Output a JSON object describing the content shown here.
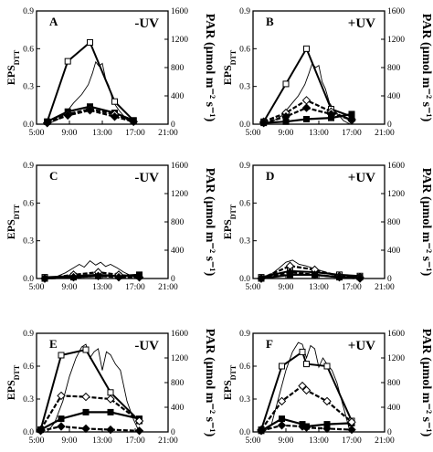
{
  "chart_data": [
    {
      "type": "line",
      "panel_label": "A",
      "treatment": "-UV",
      "ylabel": "EPS",
      "ylabel_subscript": "DTT",
      "y2label": "PAR (µmol m⁻² s⁻¹)",
      "xlim": [
        5,
        21
      ],
      "x_ticks": [
        "5:00",
        "9:00",
        "13:00",
        "17:00",
        "21:00"
      ],
      "ylim": [
        0,
        0.9
      ],
      "y_ticks": [
        "0.0",
        "0.3",
        "0.6",
        "0.9"
      ],
      "y2lim": [
        0,
        1600
      ],
      "y2_ticks": [
        "0",
        "400",
        "800",
        "1200",
        "1600"
      ],
      "series": [
        {
          "style": "open-square",
          "x": [
            6.3,
            8.8,
            11.5,
            14.5,
            16.8
          ],
          "y": [
            0.02,
            0.5,
            0.65,
            0.18,
            0.03
          ]
        },
        {
          "style": "filled-square",
          "x": [
            6.3,
            8.8,
            11.5,
            14.5,
            16.8
          ],
          "y": [
            0.02,
            0.1,
            0.14,
            0.09,
            0.03
          ]
        },
        {
          "style": "open-diamond",
          "x": [
            6.3,
            8.8,
            11.5,
            14.5,
            16.8
          ],
          "y": [
            0.01,
            0.08,
            0.12,
            0.08,
            0.02
          ]
        },
        {
          "style": "filled-diamond",
          "x": [
            6.3,
            8.8,
            11.5,
            14.5,
            16.8
          ],
          "y": [
            0.01,
            0.07,
            0.11,
            0.06,
            0.02
          ]
        }
      ],
      "par": {
        "x": [
          6.3,
          7.5,
          8.5,
          9.5,
          10.5,
          11.3,
          11.8,
          12.2,
          12.6,
          13.0,
          13.4,
          13.8,
          14.3,
          15.0,
          16.0,
          16.8
        ],
        "y": [
          0,
          60,
          150,
          300,
          420,
          560,
          720,
          880,
          820,
          860,
          640,
          540,
          320,
          200,
          60,
          0
        ]
      }
    },
    {
      "type": "line",
      "panel_label": "B",
      "treatment": "+UV",
      "ylabel": "EPS",
      "ylabel_subscript": "DTT",
      "y2label": "PAR (µmol m⁻² s⁻¹)",
      "xlim": [
        5,
        21
      ],
      "x_ticks": [
        "5:00",
        "9:00",
        "13:00",
        "17:00",
        "21:00"
      ],
      "ylim": [
        0,
        0.9
      ],
      "y_ticks": [
        "0.0",
        "0.3",
        "0.6",
        "0.9"
      ],
      "y2lim": [
        0,
        1600
      ],
      "y2_ticks": [
        "0",
        "400",
        "800",
        "1200",
        "1600"
      ],
      "series": [
        {
          "style": "open-square",
          "x": [
            6.3,
            9.0,
            11.5,
            14.5,
            17.0
          ],
          "y": [
            0.02,
            0.32,
            0.6,
            0.12,
            0.06
          ]
        },
        {
          "style": "filled-square",
          "x": [
            6.3,
            9.0,
            11.5,
            14.5,
            17.0
          ],
          "y": [
            0.01,
            0.02,
            0.04,
            0.05,
            0.08
          ]
        },
        {
          "style": "open-diamond",
          "x": [
            6.3,
            9.0,
            11.5,
            14.5,
            17.0
          ],
          "y": [
            0.02,
            0.09,
            0.19,
            0.1,
            0.03
          ]
        },
        {
          "style": "filled-diamond",
          "x": [
            6.3,
            9.0,
            11.5,
            14.5,
            17.0
          ],
          "y": [
            0.01,
            0.06,
            0.13,
            0.08,
            0.04
          ]
        }
      ],
      "par": {
        "x": [
          6.3,
          7.5,
          8.5,
          9.5,
          10.5,
          11.3,
          11.8,
          12.2,
          12.6,
          13.0,
          13.4,
          13.8,
          14.3,
          15.0,
          16.0,
          16.8
        ],
        "y": [
          0,
          50,
          120,
          260,
          400,
          560,
          720,
          860,
          800,
          830,
          600,
          500,
          300,
          180,
          50,
          0
        ]
      }
    },
    {
      "type": "line",
      "panel_label": "C",
      "treatment": "-UV",
      "ylabel": "EPS",
      "ylabel_subscript": "DTT",
      "y2label": "PAR (µmol m⁻² s⁻¹)",
      "xlim": [
        5,
        21
      ],
      "x_ticks": [
        "5:00",
        "9:00",
        "13:00",
        "17:00",
        "21:00"
      ],
      "ylim": [
        0,
        0.9
      ],
      "y_ticks": [
        "0.0",
        "0.3",
        "0.6",
        "0.9"
      ],
      "y2lim": [
        0,
        1600
      ],
      "y2_ticks": [
        "0",
        "400",
        "800",
        "1200",
        "1600"
      ],
      "series": [
        {
          "style": "open-square",
          "x": [
            6.0,
            9.5,
            12.5,
            15.0,
            17.5
          ],
          "y": [
            0.01,
            0.02,
            0.03,
            0.02,
            0.02
          ]
        },
        {
          "style": "filled-square",
          "x": [
            6.0,
            9.5,
            12.5,
            15.0,
            17.5
          ],
          "y": [
            0.0,
            0.01,
            0.02,
            0.02,
            0.03
          ]
        },
        {
          "style": "open-diamond",
          "x": [
            6.0,
            9.5,
            12.5,
            15.0,
            17.5
          ],
          "y": [
            0.0,
            0.03,
            0.05,
            0.03,
            0.01
          ]
        },
        {
          "style": "filled-diamond",
          "x": [
            6.0,
            9.5,
            12.5,
            15.0,
            17.5
          ],
          "y": [
            0.0,
            0.01,
            0.02,
            0.01,
            0.01
          ]
        }
      ],
      "par": {
        "x": [
          6.0,
          7.5,
          8.5,
          9.5,
          10.2,
          10.8,
          11.5,
          12.2,
          12.8,
          13.4,
          14.0,
          14.8,
          15.6,
          16.5,
          17.5
        ],
        "y": [
          0,
          30,
          80,
          150,
          200,
          160,
          250,
          190,
          230,
          170,
          200,
          150,
          90,
          40,
          0
        ]
      }
    },
    {
      "type": "line",
      "panel_label": "D",
      "treatment": "+UV",
      "ylabel": "EPS",
      "ylabel_subscript": "DTT",
      "y2label": "PAR (µmol m⁻² s⁻¹)",
      "xlim": [
        5,
        21
      ],
      "x_ticks": [
        "5:00",
        "9:00",
        "13:00",
        "17:00",
        "21:00"
      ],
      "ylim": [
        0,
        0.9
      ],
      "y_ticks": [
        "0.0",
        "0.3",
        "0.6",
        "0.9"
      ],
      "y2lim": [
        0,
        1600
      ],
      "y2_ticks": [
        "0",
        "400",
        "800",
        "1200",
        "1600"
      ],
      "series": [
        {
          "style": "open-square",
          "x": [
            6.0,
            9.5,
            12.5,
            15.5,
            18.0
          ],
          "y": [
            0.01,
            0.06,
            0.05,
            0.03,
            0.02
          ]
        },
        {
          "style": "filled-square",
          "x": [
            6.0,
            9.5,
            12.5,
            15.5,
            18.0
          ],
          "y": [
            0.0,
            0.03,
            0.03,
            0.01,
            0.01
          ]
        },
        {
          "style": "open-diamond",
          "x": [
            6.0,
            9.5,
            12.5,
            15.5,
            18.0
          ],
          "y": [
            0.0,
            0.1,
            0.07,
            0.02,
            0.01
          ]
        },
        {
          "style": "filled-diamond",
          "x": [
            6.0,
            9.5,
            12.5,
            15.5,
            18.0
          ],
          "y": [
            0.0,
            0.05,
            0.03,
            0.01,
            0.0
          ]
        }
      ],
      "par": {
        "x": [
          6.0,
          7.2,
          8.2,
          9.0,
          9.8,
          10.6,
          11.4,
          12.2,
          13.0,
          13.8,
          14.6,
          15.4,
          16.2,
          17.0
        ],
        "y": [
          0,
          60,
          150,
          230,
          260,
          200,
          180,
          150,
          120,
          90,
          60,
          30,
          10,
          0
        ]
      }
    },
    {
      "type": "line",
      "panel_label": "E",
      "treatment": "-UV",
      "ylabel": "EPS",
      "ylabel_subscript": "DTT",
      "y2label": "PAR (µmol m⁻² s⁻¹)",
      "xlim": [
        5,
        21
      ],
      "x_ticks": [
        "5:00",
        "9:00",
        "13:00",
        "17:00",
        "21:00"
      ],
      "ylim": [
        0,
        0.9
      ],
      "y_ticks": [
        "0.0",
        "0.3",
        "0.6",
        "0.9"
      ],
      "y2lim": [
        0,
        1600
      ],
      "y2_ticks": [
        "0",
        "400",
        "800",
        "1200",
        "1600"
      ],
      "series": [
        {
          "style": "open-square",
          "x": [
            5.5,
            8.0,
            11.0,
            14.0,
            17.5
          ],
          "y": [
            0.02,
            0.7,
            0.75,
            0.36,
            0.1
          ]
        },
        {
          "style": "filled-square",
          "x": [
            5.5,
            8.0,
            11.0,
            14.0,
            17.5
          ],
          "y": [
            0.02,
            0.12,
            0.18,
            0.18,
            0.12
          ]
        },
        {
          "style": "open-diamond",
          "x": [
            5.5,
            8.0,
            11.0,
            14.0,
            17.5
          ],
          "y": [
            0.02,
            0.33,
            0.32,
            0.3,
            0.1
          ]
        },
        {
          "style": "filled-diamond",
          "x": [
            5.5,
            8.0,
            11.0,
            14.0,
            17.5
          ],
          "y": [
            0.01,
            0.05,
            0.03,
            0.02,
            0.01
          ]
        }
      ],
      "par": {
        "x": [
          6.3,
          7.2,
          8.2,
          9.0,
          9.8,
          10.5,
          11.0,
          11.5,
          12.0,
          12.5,
          13.0,
          13.5,
          14.0,
          14.6,
          15.2,
          16.0,
          16.8,
          17.5
        ],
        "y": [
          0,
          150,
          500,
          900,
          1200,
          1380,
          1420,
          1200,
          1300,
          1350,
          1000,
          1300,
          1250,
          1100,
          1000,
          500,
          200,
          0
        ]
      }
    },
    {
      "type": "line",
      "panel_label": "F",
      "treatment": "+UV",
      "ylabel": "EPS",
      "ylabel_subscript": "DTT",
      "y2label": "PAR (µmol m⁻² s⁻¹)",
      "xlim": [
        5,
        21
      ],
      "x_ticks": [
        "5:00",
        "9:00",
        "13:00",
        "17:00",
        "21:00"
      ],
      "ylim": [
        0,
        0.9
      ],
      "y_ticks": [
        "0.0",
        "0.3",
        "0.6",
        "0.9"
      ],
      "y2lim": [
        0,
        1600
      ],
      "y2_ticks": [
        "0",
        "400",
        "800",
        "1200",
        "1600"
      ],
      "series": [
        {
          "style": "open-square",
          "x": [
            6.0,
            8.5,
            11.0,
            11.5,
            14.0,
            17.0
          ],
          "y": [
            0.02,
            0.6,
            0.73,
            0.62,
            0.6,
            0.1
          ]
        },
        {
          "style": "filled-square",
          "x": [
            6.0,
            8.5,
            11.0,
            11.5,
            14.0,
            17.0
          ],
          "y": [
            0.01,
            0.12,
            0.07,
            0.05,
            0.07,
            0.08
          ]
        },
        {
          "style": "open-diamond",
          "x": [
            6.0,
            8.5,
            11.0,
            11.5,
            14.0,
            17.0
          ],
          "y": [
            0.02,
            0.28,
            0.42,
            0.38,
            0.28,
            0.09
          ]
        },
        {
          "style": "filled-diamond",
          "x": [
            6.0,
            8.5,
            11.0,
            11.5,
            14.0,
            17.0
          ],
          "y": [
            0.01,
            0.06,
            0.05,
            0.04,
            0.03,
            0.02
          ]
        }
      ],
      "par": {
        "x": [
          6.3,
          7.2,
          8.2,
          9.0,
          9.8,
          10.5,
          11.0,
          11.5,
          12.0,
          12.5,
          13.0,
          13.5,
          14.0,
          14.6,
          15.2,
          16.0,
          16.8
        ],
        "y": [
          0,
          100,
          600,
          1000,
          1300,
          1450,
          1420,
          1200,
          1400,
          1350,
          1050,
          1200,
          1100,
          1000,
          800,
          400,
          0
        ]
      }
    }
  ]
}
